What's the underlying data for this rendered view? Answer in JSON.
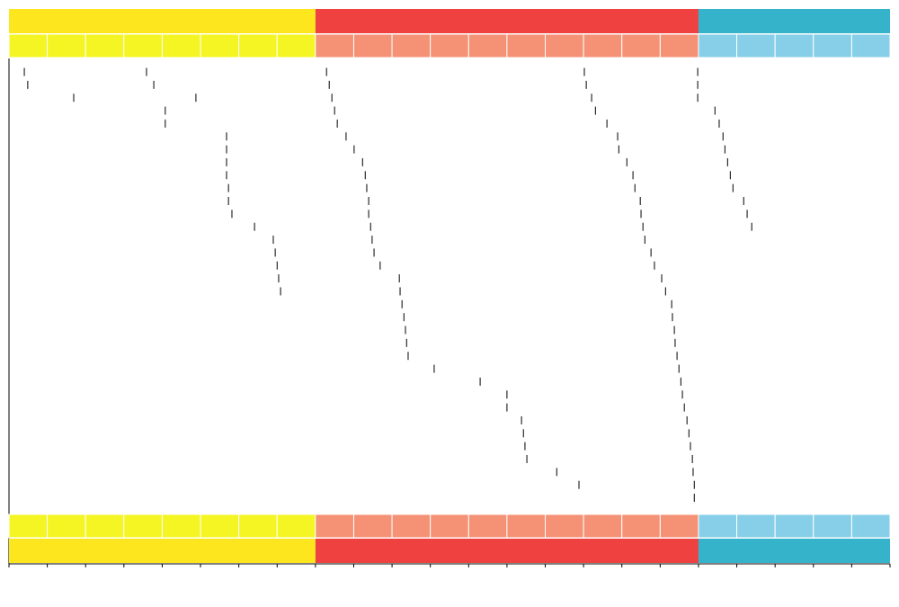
{
  "chart_data": {
    "type": "timeline",
    "groups": [
      {
        "color": "#fde61e",
        "light": "#f5f523",
        "columns": 8
      },
      {
        "color": "#f04141",
        "light": "#f59175",
        "columns": 10
      },
      {
        "color": "#35b3cb",
        "light": "#87cfe8",
        "columns": 5
      }
    ],
    "mark_color": "#000000",
    "tracks": [
      {
        "x": [
          0.4,
          0.49,
          1.69,
          3.59,
          3.78,
          4.88,
          4.08,
          4.08,
          5.68,
          5.68,
          5.68,
          5.68,
          5.73,
          5.73,
          5.82,
          6.41,
          6.9,
          6.95,
          7.0,
          7.04,
          7.09
        ],
        "row": [
          0,
          1,
          2,
          0,
          1,
          2,
          3,
          4,
          5,
          6,
          7,
          8,
          9,
          10,
          11,
          12,
          13,
          14,
          15,
          16,
          17
        ]
      },
      {
        "x": [
          8.29,
          8.36,
          8.43,
          8.5,
          8.57,
          8.8,
          9.01,
          9.23,
          9.3,
          9.34,
          9.39,
          9.39,
          9.44,
          9.48,
          9.53,
          9.69,
          10.19,
          10.21,
          10.26,
          10.31,
          10.35,
          10.38,
          10.42,
          11.1,
          12.3,
          13.0,
          13.0,
          13.38,
          13.43,
          13.47,
          13.52,
          14.3,
          14.88
        ],
        "row": [
          0,
          1,
          2,
          3,
          4,
          5,
          6,
          7,
          8,
          9,
          10,
          11,
          12,
          13,
          14,
          15,
          16,
          17,
          18,
          19,
          20,
          21,
          22,
          23,
          24,
          25,
          26,
          27,
          28,
          29,
          30,
          31,
          32
        ]
      },
      {
        "x": [
          15.02,
          15.07,
          15.21,
          15.31,
          15.61,
          15.89,
          15.92,
          16.13,
          16.29,
          16.34,
          16.48,
          16.5,
          16.55,
          16.6,
          16.76,
          16.85,
          17.04,
          17.14,
          17.3,
          17.32,
          17.37,
          17.39,
          17.44,
          17.49,
          17.54,
          17.58,
          17.63,
          17.7,
          17.75,
          17.79,
          17.84,
          17.86,
          17.89,
          17.89
        ],
        "row": [
          0,
          1,
          2,
          3,
          4,
          5,
          6,
          7,
          8,
          9,
          10,
          11,
          12,
          13,
          14,
          15,
          16,
          17,
          18,
          19,
          20,
          21,
          22,
          23,
          24,
          25,
          26,
          27,
          28,
          29,
          30,
          31,
          32,
          33
        ]
      },
      {
        "x": [
          17.98,
          17.98,
          17.98,
          18.43,
          18.54,
          18.64,
          18.69,
          18.76,
          18.83,
          18.9,
          19.18,
          19.27,
          19.39
        ],
        "row": [
          0,
          1,
          2,
          3,
          4,
          5,
          6,
          7,
          8,
          9,
          10,
          11,
          12
        ]
      }
    ]
  }
}
